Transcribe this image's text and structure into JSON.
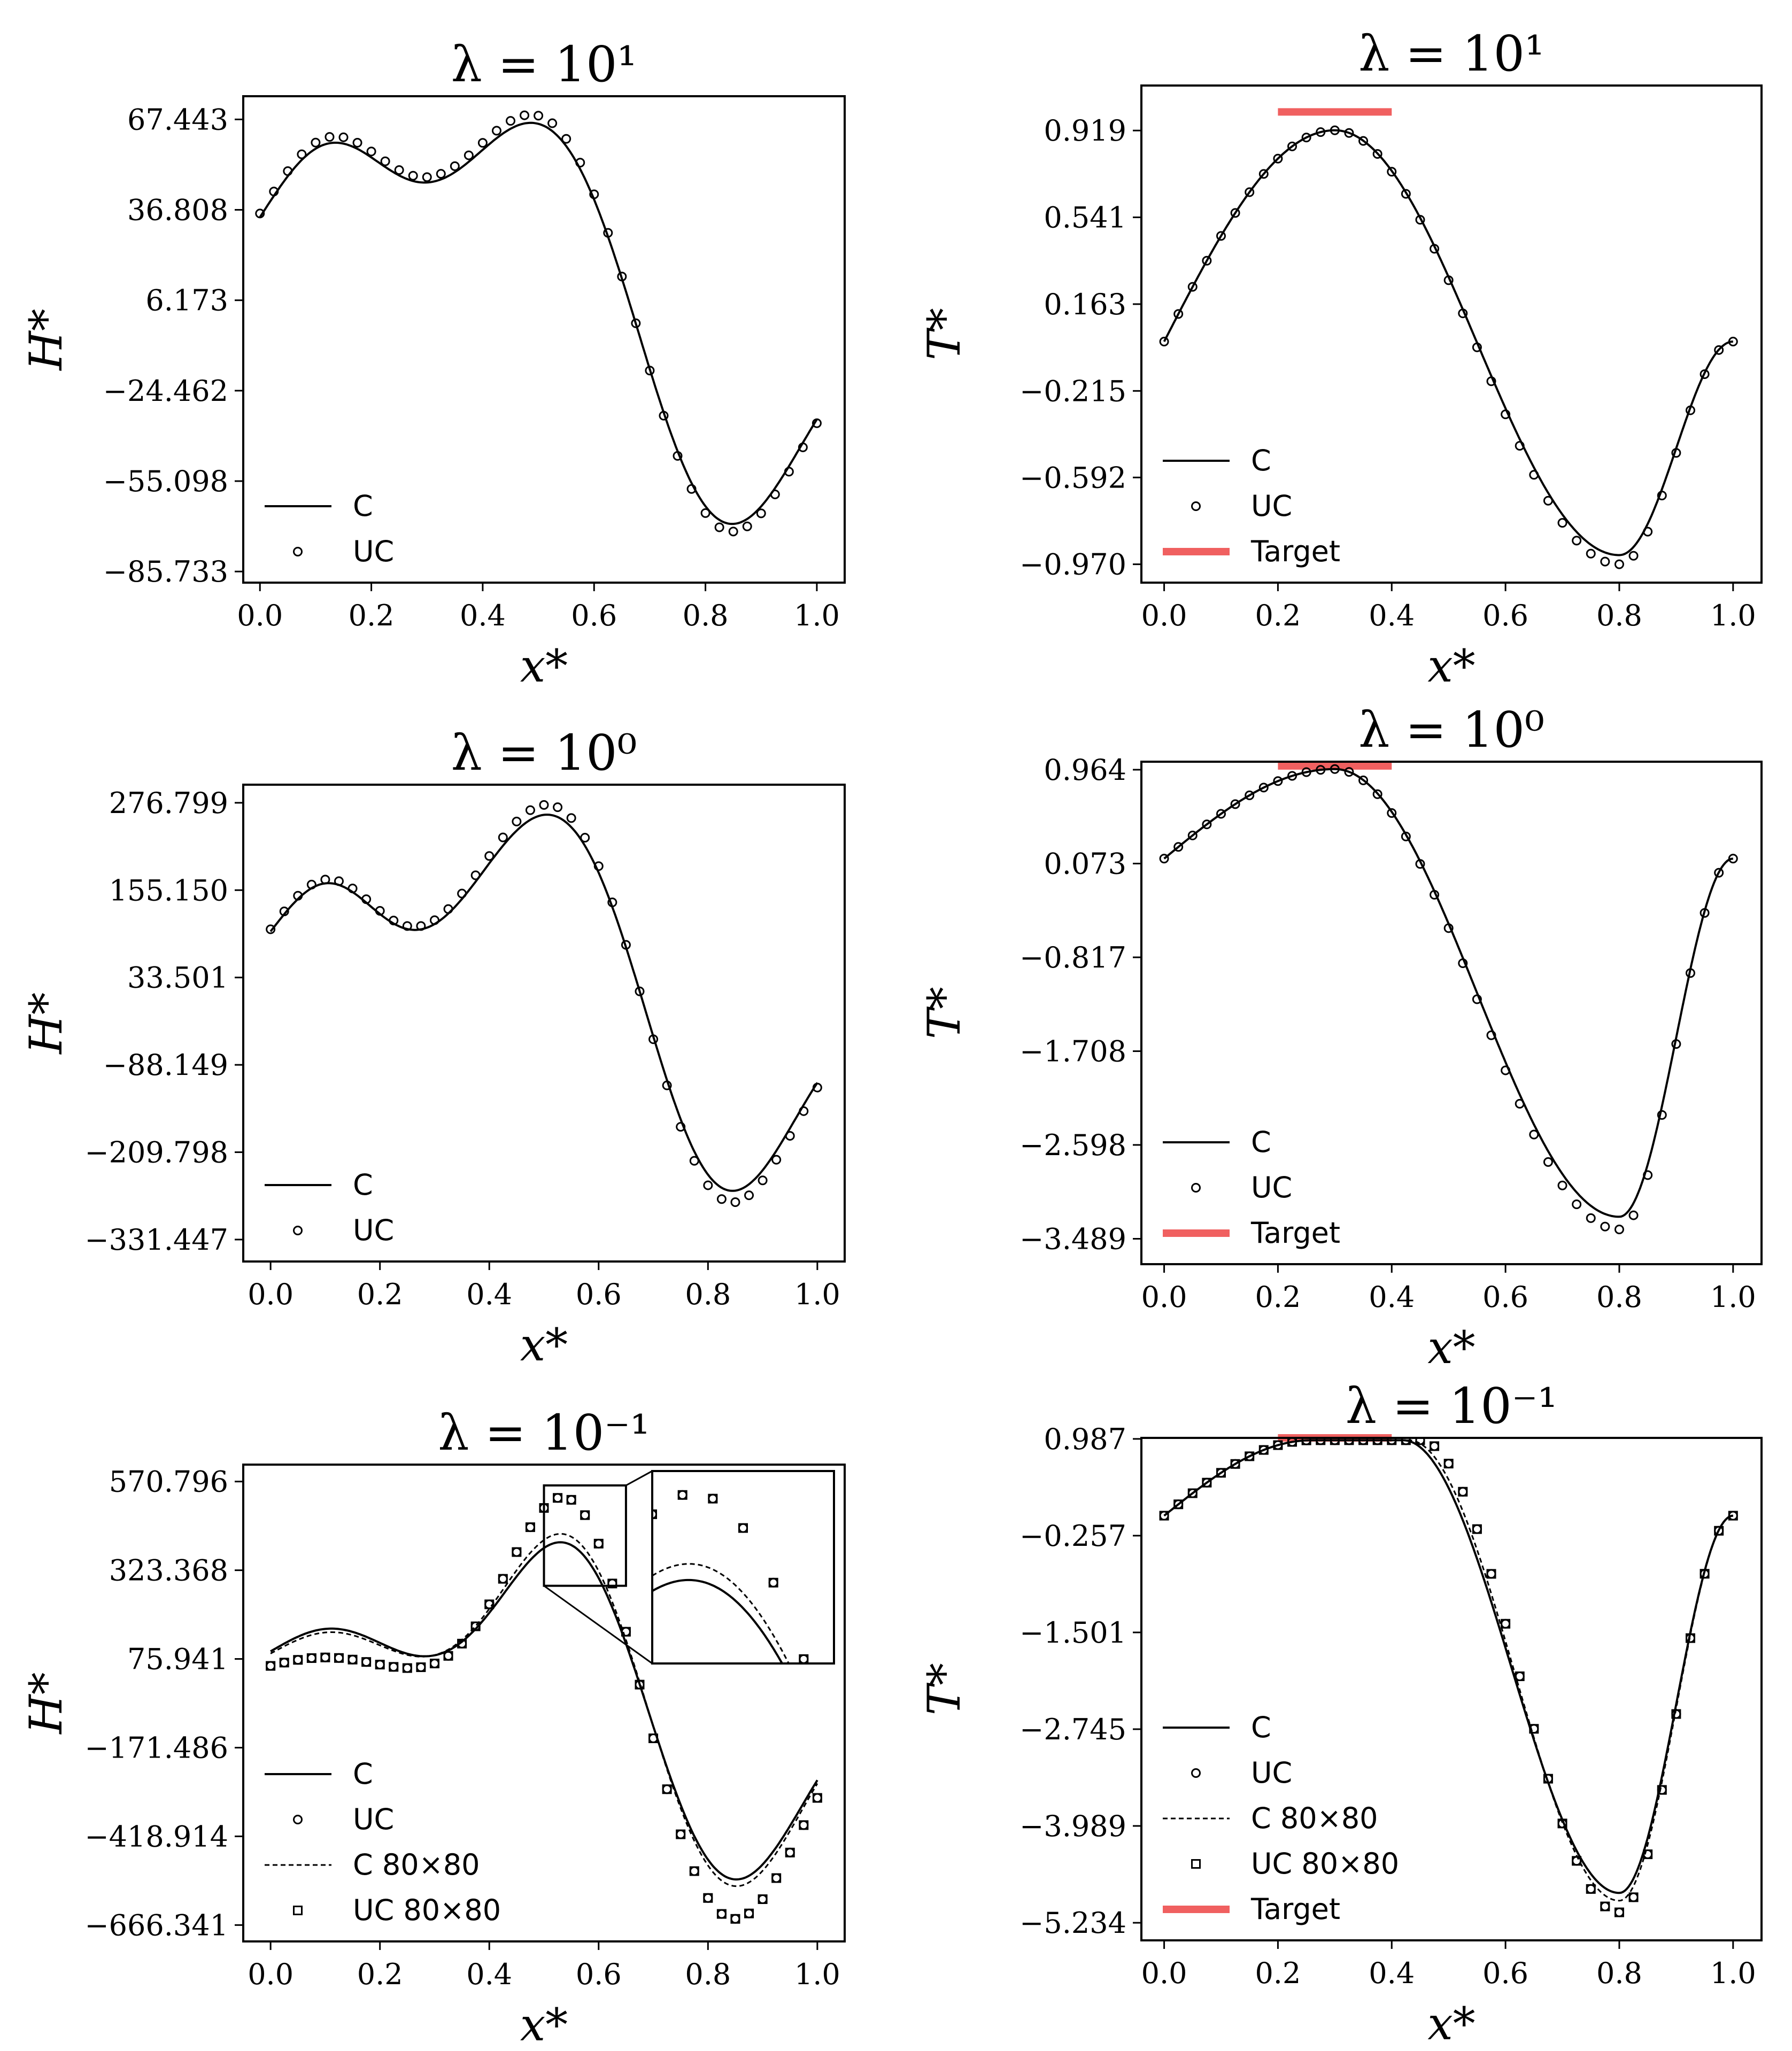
{
  "figure": {
    "tick_labels_x": [
      "0.0",
      "0.2",
      "0.4",
      "0.6",
      "0.8",
      "1.0"
    ],
    "xlabel": "x*",
    "colors": {
      "line": "#000000",
      "target": "#f06060"
    }
  },
  "chart_data": [
    {
      "id": "H1",
      "type": "line",
      "title": "λ = 10¹",
      "ylabel": "H*",
      "xlabel": "x*",
      "xlim": [
        -0.03,
        1.05
      ],
      "ylim": [
        -89.5,
        75.3
      ],
      "xticks": [
        0.0,
        0.2,
        0.4,
        0.6,
        0.8,
        1.0
      ],
      "yticks": [
        67.443,
        36.808,
        6.173,
        -24.462,
        -55.098,
        -85.733
      ],
      "ytick_labels": [
        "67.443",
        "36.808",
        "6.173",
        "−24.462",
        "−55.098",
        "−85.733"
      ],
      "legend_position": "lower-left",
      "series": [
        {
          "name": "C",
          "style": "solid",
          "fn": {
            "kind": "H",
            "a1": 56,
            "b1": 0.12,
            "s1": 0.12,
            "a2": 72,
            "b2": 0.52,
            "s2": 0.16,
            "a3": -80,
            "b3": 0.82,
            "s3": 0.14,
            "y0": 0,
            "y1": 0
          }
        },
        {
          "name": "UC",
          "style": "circle",
          "fn": {
            "kind": "H",
            "a1": 58,
            "b1": 0.12,
            "s1": 0.12,
            "a2": 75,
            "b2": 0.52,
            "s2": 0.16,
            "a3": -83,
            "b3": 0.82,
            "s3": 0.14,
            "y0": 0,
            "y1": 0
          }
        }
      ]
    },
    {
      "id": "T1",
      "type": "line",
      "title": "λ = 10¹",
      "ylabel": "T*",
      "xlabel": "x*",
      "xlim": [
        -0.04,
        1.05
      ],
      "ylim": [
        -1.05,
        1.115
      ],
      "xticks": [
        0.0,
        0.2,
        0.4,
        0.6,
        0.8,
        1.0
      ],
      "yticks": [
        0.919,
        0.541,
        0.163,
        -0.215,
        -0.592,
        -0.97
      ],
      "ytick_labels": [
        "0.919",
        "0.541",
        "0.163",
        "−0.215",
        "−0.592",
        "−0.970"
      ],
      "legend_position": "lower-left",
      "target": {
        "name": "Target",
        "x": [
          0.2,
          0.4
        ],
        "y": 1.0
      },
      "series": [
        {
          "name": "C",
          "style": "solid",
          "fn": {
            "kind": "T",
            "y0": 0.0,
            "p": 0.92,
            "xp": 0.3,
            "m": -0.93,
            "xm": 0.8,
            "y1": 0.0
          }
        },
        {
          "name": "UC",
          "style": "circle",
          "fn": {
            "kind": "T",
            "y0": 0.0,
            "p": 0.92,
            "xp": 0.3,
            "m": -0.97,
            "xm": 0.8,
            "y1": 0.0
          }
        }
      ]
    },
    {
      "id": "H2",
      "type": "line",
      "title": "λ = 10⁰",
      "ylabel": "H*",
      "xlabel": "x*",
      "xlim": [
        -0.05,
        1.05
      ],
      "ylim": [
        -362,
        302
      ],
      "xticks": [
        0.0,
        0.2,
        0.4,
        0.6,
        0.8,
        1.0
      ],
      "yticks": [
        276.799,
        155.15,
        33.501,
        -88.149,
        -209.798,
        -331.447
      ],
      "ytick_labels": [
        "276.799",
        "155.150",
        "33.501",
        "−88.149",
        "−209.798",
        "−331.447"
      ],
      "legend_position": "lower-left",
      "series": [
        {
          "name": "C",
          "style": "solid",
          "fn": {
            "kind": "H",
            "a1": 160,
            "b1": 0.1,
            "s1": 0.1,
            "a2": 280,
            "b2": 0.53,
            "s2": 0.15,
            "a3": -300,
            "b3": 0.82,
            "s3": 0.13,
            "y0": 0,
            "y1": 0
          }
        },
        {
          "name": "UC",
          "style": "circle",
          "fn": {
            "kind": "H",
            "a1": 165,
            "b1": 0.1,
            "s1": 0.1,
            "a2": 295,
            "b2": 0.53,
            "s2": 0.15,
            "a3": -318,
            "b3": 0.82,
            "s3": 0.13,
            "y0": 0,
            "y1": 0
          }
        }
      ]
    },
    {
      "id": "T2",
      "type": "line",
      "title": "λ = 10⁰",
      "ylabel": "T*",
      "xlabel": "x*",
      "xlim": [
        -0.04,
        1.05
      ],
      "ylim": [
        -3.73,
        1.04
      ],
      "xticks": [
        0.0,
        0.2,
        0.4,
        0.6,
        0.8,
        1.0
      ],
      "yticks": [
        0.964,
        0.073,
        -0.817,
        -1.708,
        -2.598,
        -3.489
      ],
      "ytick_labels": [
        "0.964",
        "0.073",
        "−0.817",
        "−1.708",
        "−2.598",
        "−3.489"
      ],
      "legend_position": "lower-left",
      "target": {
        "name": "Target",
        "x": [
          0.2,
          0.4
        ],
        "y": 1.0
      },
      "series": [
        {
          "name": "C",
          "style": "solid",
          "fn": {
            "kind": "T",
            "y0": 0.12,
            "p": 0.97,
            "xp": 0.3,
            "m": -3.28,
            "xm": 0.8,
            "y1": 0.12
          }
        },
        {
          "name": "UC",
          "style": "circle",
          "fn": {
            "kind": "T",
            "y0": 0.12,
            "p": 0.97,
            "xp": 0.3,
            "m": -3.4,
            "xm": 0.8,
            "y1": 0.12
          }
        }
      ]
    },
    {
      "id": "H3",
      "type": "line",
      "title": "λ = 10⁻¹",
      "ylabel": "H*",
      "xlabel": "x*",
      "xlim": [
        -0.05,
        1.05
      ],
      "ylim": [
        -712,
        618
      ],
      "xticks": [
        0.0,
        0.2,
        0.4,
        0.6,
        0.8,
        1.0
      ],
      "yticks": [
        570.796,
        323.368,
        75.941,
        -171.486,
        -418.914,
        -666.341
      ],
      "ytick_labels": [
        "570.796",
        "323.368",
        "75.941",
        "−171.486",
        "−418.914",
        "−666.341"
      ],
      "legend_position": "lower-left",
      "inset": {
        "x": [
          0.5,
          0.65
        ],
        "y": [
          280,
          560
        ]
      },
      "series": [
        {
          "name": "C",
          "style": "solid",
          "fn": {
            "kind": "H",
            "a1": 160,
            "b1": 0.11,
            "s1": 0.11,
            "a2": 440,
            "b2": 0.55,
            "s2": 0.12,
            "a3": -560,
            "b3": 0.84,
            "s3": 0.13,
            "y0": 0,
            "y1": 0
          }
        },
        {
          "name": "UC",
          "style": "circle",
          "fn": {
            "kind": "H",
            "a1": 80,
            "b1": 0.1,
            "s1": 0.12,
            "a2": 575,
            "b2": 0.55,
            "s2": 0.11,
            "a3": -665,
            "b3": 0.84,
            "s3": 0.13,
            "y0": 0,
            "y1": 0
          }
        },
        {
          "name": "C 80×80",
          "style": "dashed",
          "fn": {
            "kind": "H",
            "a1": 150,
            "b1": 0.11,
            "s1": 0.11,
            "a2": 465,
            "b2": 0.55,
            "s2": 0.12,
            "a3": -580,
            "b3": 0.84,
            "s3": 0.13,
            "y0": 0,
            "y1": 0
          }
        },
        {
          "name": "UC 80×80",
          "style": "square",
          "fn": {
            "kind": "H",
            "a1": 80,
            "b1": 0.1,
            "s1": 0.12,
            "a2": 575,
            "b2": 0.55,
            "s2": 0.11,
            "a3": -665,
            "b3": 0.84,
            "s3": 0.13,
            "y0": 0,
            "y1": 0
          }
        }
      ]
    },
    {
      "id": "T3",
      "type": "line",
      "title": "λ = 10⁻¹",
      "ylabel": "T*",
      "xlabel": "x*",
      "xlim": [
        -0.04,
        1.05
      ],
      "ylim": [
        -5.46,
        1.0
      ],
      "xticks": [
        0.0,
        0.2,
        0.4,
        0.6,
        0.8,
        1.0
      ],
      "yticks": [
        0.987,
        -0.257,
        -1.501,
        -2.745,
        -3.989,
        -5.234
      ],
      "ytick_labels": [
        "0.987",
        "−0.257",
        "−1.501",
        "−2.745",
        "−3.989",
        "−5.234"
      ],
      "legend_position": "lower-left",
      "target": {
        "name": "Target",
        "x": [
          0.2,
          0.4
        ],
        "y": 1.0
      },
      "series": [
        {
          "name": "C",
          "style": "solid",
          "fn": {
            "kind": "T2",
            "y0": 0.0,
            "p": 0.97,
            "c1": 0.26,
            "c2": 0.42,
            "xm": 0.8,
            "m": -4.85,
            "y1": 0.0
          }
        },
        {
          "name": "UC",
          "style": "circle",
          "fn": {
            "kind": "T2",
            "y0": 0.0,
            "p": 0.97,
            "c1": 0.26,
            "c2": 0.45,
            "xm": 0.8,
            "m": -5.1,
            "y1": 0.0
          }
        },
        {
          "name": "C 80×80",
          "style": "dashed",
          "fn": {
            "kind": "T2",
            "y0": 0.0,
            "p": 0.97,
            "c1": 0.26,
            "c2": 0.43,
            "xm": 0.8,
            "m": -4.95,
            "y1": 0.0
          }
        },
        {
          "name": "UC 80×80",
          "style": "square",
          "fn": {
            "kind": "T2",
            "y0": 0.0,
            "p": 0.97,
            "c1": 0.26,
            "c2": 0.45,
            "xm": 0.8,
            "m": -5.1,
            "y1": 0.0
          }
        }
      ]
    }
  ]
}
